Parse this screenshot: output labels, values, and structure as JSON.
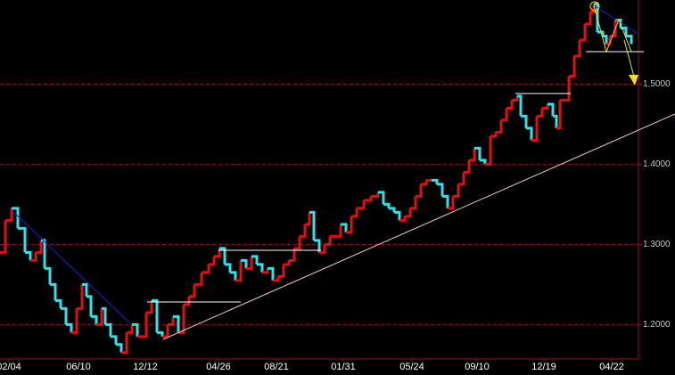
{
  "chart_data": {
    "type": "step",
    "series": [
      {
        "up_color": "#e01010",
        "down_color": "#33e0e8",
        "x": [
          0,
          6,
          13,
          20,
          28,
          34,
          40,
          46,
          50,
          56,
          62,
          68,
          74,
          80,
          86,
          92,
          97,
          102,
          108,
          114,
          118,
          124,
          130,
          136,
          142,
          148,
          154,
          158,
          164,
          170,
          176,
          182,
          188,
          194,
          200,
          206,
          212,
          218,
          226,
          234,
          240,
          246,
          252,
          258,
          264,
          270,
          276,
          282,
          288,
          294,
          300,
          306,
          312,
          318,
          324,
          330,
          336,
          342,
          347,
          352,
          358,
          364,
          370,
          376,
          382,
          388,
          394,
          400,
          408,
          416,
          424,
          430,
          436,
          442,
          448,
          454,
          460,
          466,
          472,
          478,
          484,
          490,
          496,
          502,
          508,
          514,
          520,
          526,
          532,
          538,
          544,
          550,
          556,
          562,
          568,
          574,
          580,
          584,
          590,
          596,
          602,
          608,
          614,
          620,
          624,
          628,
          634,
          638,
          644,
          650,
          656,
          662,
          666,
          670,
          676,
          680,
          684,
          690,
          696,
          702,
          708
        ],
        "values": [
          1.29,
          1.33,
          1.345,
          1.32,
          1.29,
          1.28,
          1.29,
          1.305,
          1.27,
          1.25,
          1.23,
          1.22,
          1.2,
          1.19,
          1.22,
          1.25,
          1.235,
          1.21,
          1.2,
          1.22,
          1.2,
          1.185,
          1.175,
          1.165,
          1.19,
          1.2,
          1.185,
          1.185,
          1.215,
          1.23,
          1.19,
          1.185,
          1.2,
          1.21,
          1.19,
          1.225,
          1.235,
          1.25,
          1.265,
          1.275,
          1.285,
          1.295,
          1.275,
          1.265,
          1.255,
          1.28,
          1.27,
          1.285,
          1.275,
          1.265,
          1.27,
          1.255,
          1.26,
          1.275,
          1.28,
          1.295,
          1.31,
          1.325,
          1.34,
          1.305,
          1.29,
          1.3,
          1.31,
          1.31,
          1.325,
          1.315,
          1.335,
          1.345,
          1.355,
          1.36,
          1.365,
          1.35,
          1.345,
          1.34,
          1.33,
          1.335,
          1.345,
          1.36,
          1.375,
          1.38,
          1.38,
          1.375,
          1.36,
          1.345,
          1.36,
          1.375,
          1.39,
          1.405,
          1.42,
          1.405,
          1.4,
          1.435,
          1.44,
          1.455,
          1.47,
          1.48,
          1.485,
          1.46,
          1.445,
          1.43,
          1.46,
          1.47,
          1.475,
          1.46,
          1.445,
          1.48,
          1.48,
          1.51,
          1.535,
          1.555,
          1.575,
          1.59,
          1.6,
          1.565,
          1.56,
          1.55,
          1.56,
          1.58,
          1.57,
          1.56,
          1.55
        ]
      }
    ],
    "xlim": [
      0,
      716
    ],
    "xticks": [
      {
        "value": 10,
        "label": "02/04"
      },
      {
        "value": 88,
        "label": "06/10"
      },
      {
        "value": 163,
        "label": "12/12"
      },
      {
        "value": 245,
        "label": "04/26"
      },
      {
        "value": 310,
        "label": "08/21"
      },
      {
        "value": 385,
        "label": "01/31"
      },
      {
        "value": 462,
        "label": "05/24"
      },
      {
        "value": 535,
        "label": "09/10"
      },
      {
        "value": 610,
        "label": "12/19"
      },
      {
        "value": 686,
        "label": "04/22"
      }
    ],
    "ylim": [
      1.157,
      1.605
    ],
    "yticks": [
      {
        "value": 1.2,
        "label": "1.2000"
      },
      {
        "value": 1.3,
        "label": "1.3000"
      },
      {
        "value": 1.4,
        "label": "1.4000"
      },
      {
        "value": 1.5,
        "label": "1.5000"
      }
    ],
    "grid": true,
    "grid_color": "#a01010"
  }
}
